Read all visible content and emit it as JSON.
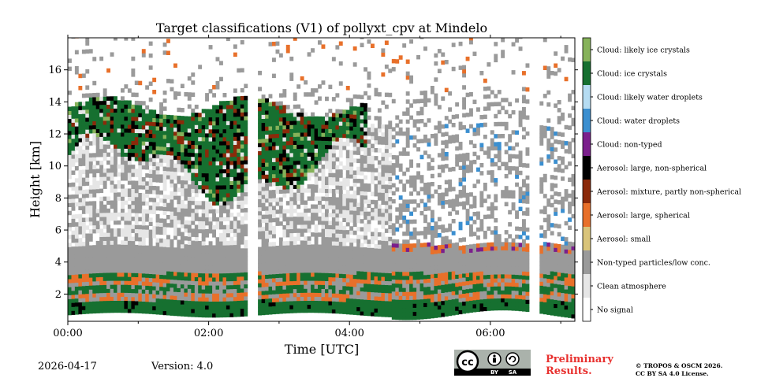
{
  "chart_data": {
    "type": "heatmap",
    "title": "Target classifications (V1) of pollyxt_cpv at Mindelo",
    "xlabel": "Time [UTC]",
    "ylabel": "Height [km]",
    "xlim_hours": [
      0,
      7.2
    ],
    "ylim_km": [
      0.3,
      18
    ],
    "x_ticks": [
      {
        "value": 0,
        "label": "00:00"
      },
      {
        "value": 2,
        "label": "02:00"
      },
      {
        "value": 4,
        "label": "04:00"
      },
      {
        "value": 6,
        "label": "06:00"
      }
    ],
    "x_minor_ticks": [
      1,
      3,
      5,
      7
    ],
    "y_ticks": [
      {
        "value": 2,
        "label": "2"
      },
      {
        "value": 4,
        "label": "4"
      },
      {
        "value": 6,
        "label": "6"
      },
      {
        "value": 8,
        "label": "8"
      },
      {
        "value": 10,
        "label": "10"
      },
      {
        "value": 12,
        "label": "12"
      },
      {
        "value": 14,
        "label": "14"
      },
      {
        "value": 16,
        "label": "16"
      }
    ],
    "data_gaps_hours": [
      [
        2.5,
        2.65
      ],
      [
        6.5,
        6.67
      ]
    ],
    "classes": [
      {
        "label": "No signal",
        "color": "#ffffff"
      },
      {
        "label": "Clean atmosphere",
        "color": "#e6e6e6"
      },
      {
        "label": "Non-typed particles/low conc.",
        "color": "#9a9a9a"
      },
      {
        "label": "Aerosol: small",
        "color": "#d9c47a"
      },
      {
        "label": "Aerosol: large, spherical",
        "color": "#e8702a"
      },
      {
        "label": "Aerosol: mixture, partly non-spherical",
        "color": "#8b2a0a"
      },
      {
        "label": "Aerosol: large, non-spherical",
        "color": "#000000"
      },
      {
        "label": "Cloud: non-typed",
        "color": "#7b1f8c"
      },
      {
        "label": "Cloud: water droplets",
        "color": "#3b8fd0"
      },
      {
        "label": "Cloud: likely water droplets",
        "color": "#b5dcf2"
      },
      {
        "label": "Cloud: ice crystals",
        "color": "#167030"
      },
      {
        "label": "Cloud: likely ice crystals",
        "color": "#86b25a"
      }
    ]
  },
  "footer": {
    "date": "2026-04-17",
    "version": "Version: 4.0",
    "preliminary_line1": "Preliminary",
    "preliminary_line2": "Results.",
    "copyright_line1": "© TROPOS & OSCM 2026.",
    "copyright_line2": "CC BY SA 4.0 License.",
    "license_badge": {
      "cc": "cc",
      "by": "BY",
      "sa": "SA"
    }
  }
}
